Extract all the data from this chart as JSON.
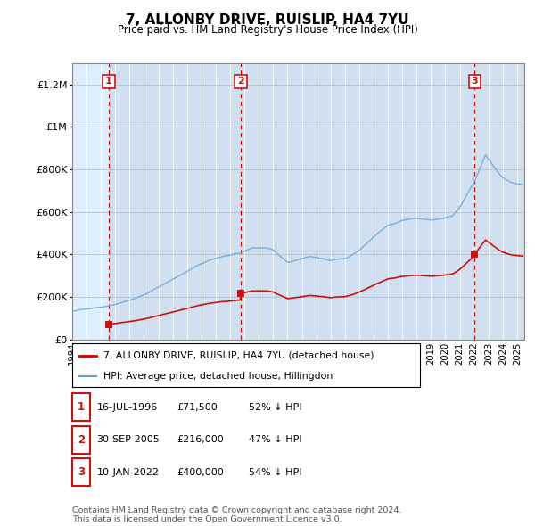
{
  "title": "7, ALLONBY DRIVE, RUISLIP, HA4 7YU",
  "subtitle": "Price paid vs. HM Land Registry's House Price Index (HPI)",
  "ylim": [
    0,
    1300000
  ],
  "yticks": [
    0,
    200000,
    400000,
    600000,
    800000,
    1000000,
    1200000
  ],
  "ytick_labels": [
    "£0",
    "£200K",
    "£400K",
    "£600K",
    "£800K",
    "£1M",
    "£1.2M"
  ],
  "plot_bg_color": "#ddeeff",
  "sale_prices": [
    71500,
    216000,
    400000
  ],
  "sale_labels": [
    "1",
    "2",
    "3"
  ],
  "sale_year_floats": [
    1996.539,
    2005.747,
    2022.027
  ],
  "legend_entries": [
    {
      "label": "7, ALLONBY DRIVE, RUISLIP, HA4 7YU (detached house)",
      "color": "#cc0000",
      "lw": 2
    },
    {
      "label": "HPI: Average price, detached house, Hillingdon",
      "color": "#6699cc",
      "lw": 1.5
    }
  ],
  "table_rows": [
    {
      "num": "1",
      "date": "16-JUL-1996",
      "price": "£71,500",
      "pct": "52% ↓ HPI"
    },
    {
      "num": "2",
      "date": "30-SEP-2005",
      "price": "£216,000",
      "pct": "47% ↓ HPI"
    },
    {
      "num": "3",
      "date": "10-JAN-2022",
      "price": "£400,000",
      "pct": "54% ↓ HPI"
    }
  ],
  "footer": "Contains HM Land Registry data © Crown copyright and database right 2024.\nThis data is licensed under the Open Government Licence v3.0.",
  "xtick_years": [
    1994,
    1995,
    1996,
    1997,
    1998,
    1999,
    2000,
    2001,
    2002,
    2003,
    2004,
    2005,
    2006,
    2007,
    2008,
    2009,
    2010,
    2011,
    2012,
    2013,
    2014,
    2015,
    2016,
    2017,
    2018,
    2019,
    2020,
    2021,
    2022,
    2023,
    2024,
    2025
  ],
  "xlim_start": 1994.0,
  "xlim_end": 2025.5,
  "hatch_end_year": 1996.539,
  "hpi_base_at_sale1": 62000,
  "hpi_base_at_sale2": 290000,
  "hpi_base_at_sale3": 740000
}
